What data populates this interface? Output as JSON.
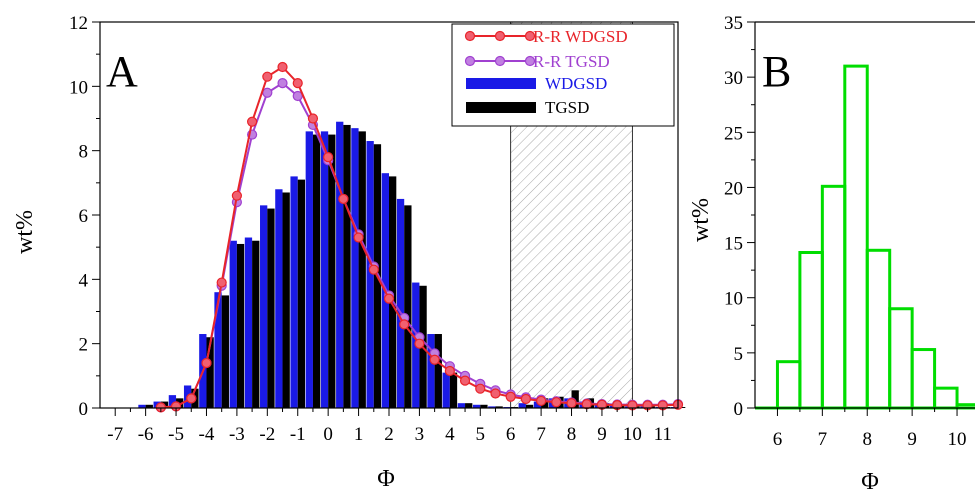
{
  "colors": {
    "rr_wdgsd": "#e8242a",
    "rr_tgsd": "#a040d0",
    "wdgsd": "#1a1ae6",
    "tgsd": "#000000",
    "histogram_b": "#00dd00",
    "shade": "#9a9a9a"
  },
  "chart_data": [
    {
      "type": "bar",
      "panel_label": "A",
      "xlabel": "Φ",
      "ylabel": "wt%",
      "xlim": [
        -7.5,
        11.5
      ],
      "ylim": [
        0,
        12
      ],
      "xticks": [
        -7,
        -6,
        -5,
        -4,
        -3,
        -2,
        -1,
        0,
        1,
        2,
        3,
        4,
        5,
        6,
        7,
        8,
        9,
        10,
        11
      ],
      "yticks": [
        0,
        2,
        4,
        6,
        8,
        10,
        12
      ],
      "shaded_region": [
        6,
        10
      ],
      "legend_position": "top-right",
      "legend": [
        "R-R WDGSD",
        "R-R TGSD",
        "WDGSD",
        "TGSD"
      ],
      "bins_x": [
        -6,
        -5.5,
        -5,
        -4.5,
        -4,
        -3.5,
        -3,
        -2.5,
        -2,
        -1.5,
        -1,
        -0.5,
        0,
        0.5,
        1,
        1.5,
        2,
        2.5,
        3,
        3.5,
        4,
        4.5,
        5,
        5.5,
        6,
        6.5,
        7,
        7.5,
        8,
        8.5,
        9,
        9.5,
        10,
        10.5,
        11,
        11.5
      ],
      "bars": [
        {
          "name": "WDGSD",
          "values": [
            0.1,
            0.2,
            0.4,
            0.7,
            2.3,
            3.6,
            5.2,
            5.3,
            6.3,
            6.8,
            7.2,
            8.6,
            8.6,
            8.9,
            8.7,
            8.3,
            7.3,
            6.5,
            3.9,
            2.3,
            1.1,
            0.15,
            0.1,
            0.05,
            0.03,
            0.15,
            0.2,
            0.3,
            0.3,
            0.2,
            0.15,
            0.1,
            0.05,
            0.05,
            0.03,
            0.03
          ]
        },
        {
          "name": "TGSD",
          "values": [
            0.1,
            0.2,
            0.3,
            0.6,
            2.2,
            3.5,
            5.1,
            5.2,
            6.2,
            6.7,
            7.1,
            8.5,
            8.5,
            8.8,
            8.6,
            8.2,
            7.2,
            6.3,
            3.8,
            2.3,
            1.1,
            0.15,
            0.1,
            0.05,
            0.03,
            0.1,
            0.3,
            0.35,
            0.55,
            0.3,
            0.15,
            0.1,
            0.05,
            0.05,
            0.03,
            0.03
          ]
        }
      ],
      "series": [
        {
          "name": "R-R WDGSD",
          "x": [
            -5.5,
            -5,
            -4.5,
            -4,
            -3.5,
            -3,
            -2.5,
            -2,
            -1.5,
            -1,
            -0.5,
            0,
            0.5,
            1,
            1.5,
            2,
            2.5,
            3,
            3.5,
            4,
            4.5,
            5,
            5.5,
            6,
            6.5,
            7,
            7.5,
            8,
            8.5,
            9,
            9.5,
            10,
            10.5,
            11,
            11.5
          ],
          "values": [
            0.02,
            0.05,
            0.3,
            1.4,
            3.9,
            6.6,
            8.9,
            10.3,
            10.6,
            10.1,
            9.0,
            7.8,
            6.5,
            5.3,
            4.3,
            3.4,
            2.6,
            2.0,
            1.5,
            1.15,
            0.85,
            0.6,
            0.45,
            0.35,
            0.28,
            0.22,
            0.18,
            0.15,
            0.12,
            0.1,
            0.09,
            0.08,
            0.08,
            0.08,
            0.1
          ]
        },
        {
          "name": "R-R TGSD",
          "x": [
            -5.5,
            -5,
            -4.5,
            -4,
            -3.5,
            -3,
            -2.5,
            -2,
            -1.5,
            -1,
            -0.5,
            0,
            0.5,
            1,
            1.5,
            2,
            2.5,
            3,
            3.5,
            4,
            4.5,
            5,
            5.5,
            6,
            6.5,
            7,
            7.5,
            8,
            8.5,
            9,
            9.5,
            10,
            10.5,
            11,
            11.5
          ],
          "values": [
            0.02,
            0.05,
            0.3,
            1.4,
            3.8,
            6.4,
            8.5,
            9.8,
            10.1,
            9.7,
            8.8,
            7.7,
            6.5,
            5.4,
            4.4,
            3.5,
            2.8,
            2.2,
            1.7,
            1.3,
            1.0,
            0.75,
            0.55,
            0.42,
            0.33,
            0.26,
            0.21,
            0.17,
            0.14,
            0.12,
            0.11,
            0.1,
            0.1,
            0.1,
            0.12
          ]
        }
      ]
    },
    {
      "type": "bar",
      "panel_label": "B",
      "xlabel": "Φ",
      "ylabel": "wt%",
      "xlim": [
        5.5,
        10.4
      ],
      "ylim": [
        0,
        35
      ],
      "xticks": [
        6,
        7,
        8,
        9,
        10
      ],
      "yticks": [
        0,
        5,
        10,
        15,
        20,
        25,
        30,
        35
      ],
      "bin_edges": [
        6.0,
        6.5,
        7.0,
        7.5,
        8.0,
        8.5,
        9.0,
        9.5,
        10.0,
        10.5
      ],
      "values": [
        4.2,
        14.1,
        20.1,
        31.0,
        14.3,
        9.0,
        5.3,
        1.8,
        0.3
      ]
    }
  ]
}
